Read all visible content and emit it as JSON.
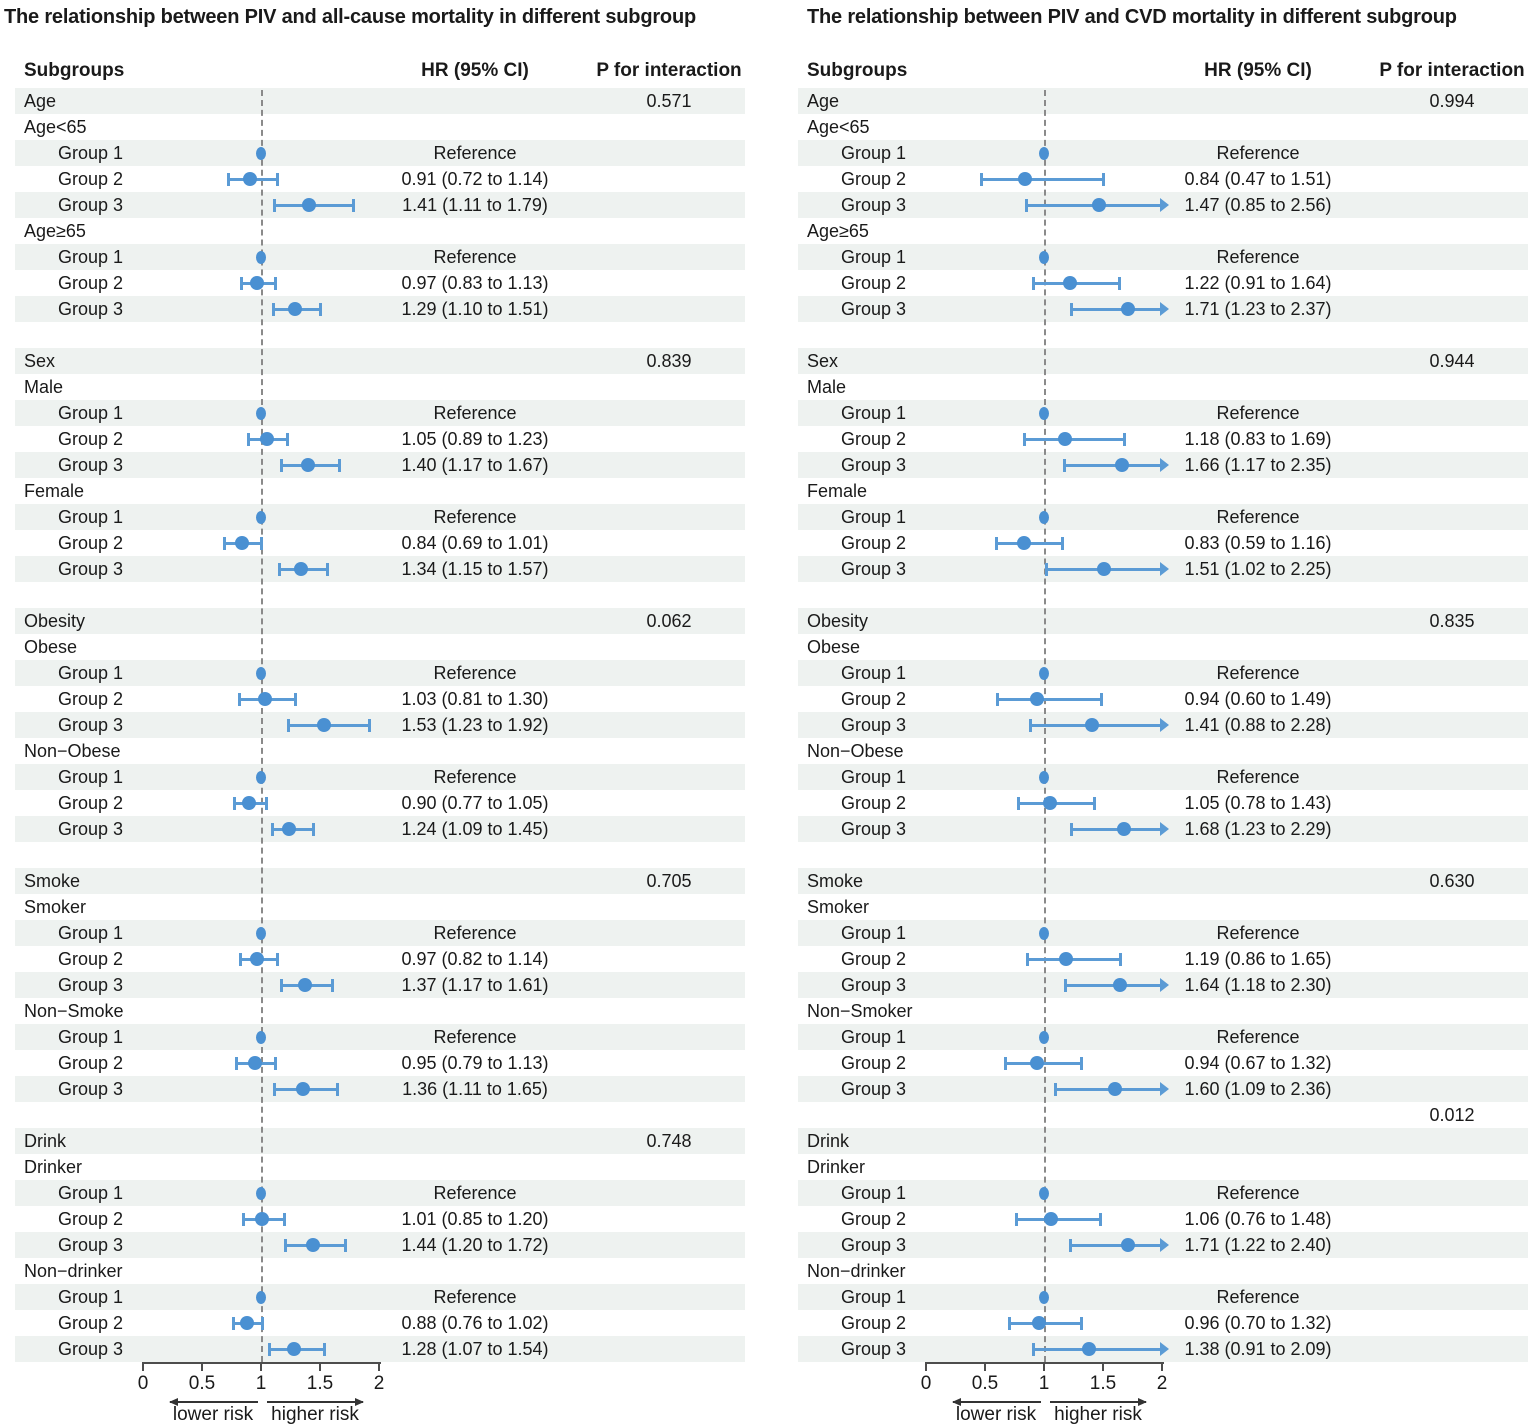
{
  "colors": {
    "marker_blue": "#4a90d2",
    "ci_line_blue": "#5b9bd5",
    "row_stripe": "#eef2f0",
    "reference_line_gray": "#8a8a8a"
  },
  "chart_data": [
    {
      "type": "scatter",
      "subtype": "forest-plot",
      "title": "The relationship between PIV and all-cause mortality in different subgroup",
      "col_headers": {
        "subgroups": "Subgroups",
        "hr_ci": "HR (95% CI)",
        "p_interaction": "P for interaction"
      },
      "axis": {
        "range": [
          0,
          2
        ],
        "tick_labels": [
          "0",
          "0.5",
          "1",
          "1.5",
          "2"
        ],
        "lower_risk_label": "lower risk",
        "higher_risk_label": "higher risk",
        "reference_value": 1
      },
      "rows": [
        {
          "type": "section",
          "label": "Age",
          "p": "0.571"
        },
        {
          "type": "subgroup",
          "label": "Age<65"
        },
        {
          "type": "estimate",
          "label": "Group 1",
          "hr_text": "Reference",
          "hr": 1
        },
        {
          "type": "estimate",
          "label": "Group 2",
          "hr_text": "0.91 (0.72 to 1.14)",
          "hr": 0.91,
          "lo": 0.72,
          "hi": 1.14
        },
        {
          "type": "estimate",
          "label": "Group 3",
          "hr_text": "1.41 (1.11 to 1.79)",
          "hr": 1.41,
          "lo": 1.11,
          "hi": 1.79
        },
        {
          "type": "subgroup",
          "label": "Age≥65"
        },
        {
          "type": "estimate",
          "label": "Group 1",
          "hr_text": "Reference",
          "hr": 1
        },
        {
          "type": "estimate",
          "label": "Group 2",
          "hr_text": "0.97 (0.83 to 1.13)",
          "hr": 0.97,
          "lo": 0.83,
          "hi": 1.13
        },
        {
          "type": "estimate",
          "label": "Group 3",
          "hr_text": "1.29 (1.10 to 1.51)",
          "hr": 1.29,
          "lo": 1.1,
          "hi": 1.51
        },
        {
          "type": "gap"
        },
        {
          "type": "section",
          "label": "Sex",
          "p": "0.839"
        },
        {
          "type": "subgroup",
          "label": "Male"
        },
        {
          "type": "estimate",
          "label": "Group 1",
          "hr_text": "Reference",
          "hr": 1
        },
        {
          "type": "estimate",
          "label": "Group 2",
          "hr_text": "1.05 (0.89 to 1.23)",
          "hr": 1.05,
          "lo": 0.89,
          "hi": 1.23
        },
        {
          "type": "estimate",
          "label": "Group 3",
          "hr_text": "1.40 (1.17 to 1.67)",
          "hr": 1.4,
          "lo": 1.17,
          "hi": 1.67
        },
        {
          "type": "subgroup",
          "label": "Female"
        },
        {
          "type": "estimate",
          "label": "Group 1",
          "hr_text": "Reference",
          "hr": 1
        },
        {
          "type": "estimate",
          "label": "Group 2",
          "hr_text": "0.84 (0.69 to 1.01)",
          "hr": 0.84,
          "lo": 0.69,
          "hi": 1.01
        },
        {
          "type": "estimate",
          "label": "Group 3",
          "hr_text": "1.34 (1.15 to 1.57)",
          "hr": 1.34,
          "lo": 1.15,
          "hi": 1.57
        },
        {
          "type": "gap"
        },
        {
          "type": "section",
          "label": "Obesity",
          "p": "0.062"
        },
        {
          "type": "subgroup",
          "label": "Obese"
        },
        {
          "type": "estimate",
          "label": "Group 1",
          "hr_text": "Reference",
          "hr": 1
        },
        {
          "type": "estimate",
          "label": "Group 2",
          "hr_text": "1.03 (0.81 to 1.30)",
          "hr": 1.03,
          "lo": 0.81,
          "hi": 1.3
        },
        {
          "type": "estimate",
          "label": "Group 3",
          "hr_text": "1.53 (1.23 to 1.92)",
          "hr": 1.53,
          "lo": 1.23,
          "hi": 1.92
        },
        {
          "type": "subgroup",
          "label": "Non−Obese"
        },
        {
          "type": "estimate",
          "label": "Group 1",
          "hr_text": "Reference",
          "hr": 1
        },
        {
          "type": "estimate",
          "label": "Group 2",
          "hr_text": "0.90 (0.77 to 1.05)",
          "hr": 0.9,
          "lo": 0.77,
          "hi": 1.05
        },
        {
          "type": "estimate",
          "label": "Group 3",
          "hr_text": "1.24 (1.09 to 1.45)",
          "hr": 1.24,
          "lo": 1.09,
          "hi": 1.45
        },
        {
          "type": "gap"
        },
        {
          "type": "section",
          "label": "Smoke",
          "p": "0.705"
        },
        {
          "type": "subgroup",
          "label": "Smoker"
        },
        {
          "type": "estimate",
          "label": "Group 1",
          "hr_text": "Reference",
          "hr": 1
        },
        {
          "type": "estimate",
          "label": "Group 2",
          "hr_text": "0.97 (0.82 to 1.14)",
          "hr": 0.97,
          "lo": 0.82,
          "hi": 1.14
        },
        {
          "type": "estimate",
          "label": "Group 3",
          "hr_text": "1.37 (1.17 to 1.61)",
          "hr": 1.37,
          "lo": 1.17,
          "hi": 1.61
        },
        {
          "type": "subgroup",
          "label": "Non−Smoke"
        },
        {
          "type": "estimate",
          "label": "Group 1",
          "hr_text": "Reference",
          "hr": 1
        },
        {
          "type": "estimate",
          "label": "Group 2",
          "hr_text": "0.95 (0.79 to 1.13)",
          "hr": 0.95,
          "lo": 0.79,
          "hi": 1.13
        },
        {
          "type": "estimate",
          "label": "Group 3",
          "hr_text": "1.36 (1.11 to 1.65)",
          "hr": 1.36,
          "lo": 1.11,
          "hi": 1.65
        },
        {
          "type": "gap"
        },
        {
          "type": "section",
          "label": "Drink",
          "p": "0.748"
        },
        {
          "type": "subgroup",
          "label": "Drinker"
        },
        {
          "type": "estimate",
          "label": "Group 1",
          "hr_text": "Reference",
          "hr": 1
        },
        {
          "type": "estimate",
          "label": "Group 2",
          "hr_text": "1.01 (0.85 to 1.20)",
          "hr": 1.01,
          "lo": 0.85,
          "hi": 1.2
        },
        {
          "type": "estimate",
          "label": "Group 3",
          "hr_text": "1.44 (1.20 to 1.72)",
          "hr": 1.44,
          "lo": 1.2,
          "hi": 1.72
        },
        {
          "type": "subgroup",
          "label": "Non−drinker"
        },
        {
          "type": "estimate",
          "label": "Group 1",
          "hr_text": "Reference",
          "hr": 1
        },
        {
          "type": "estimate",
          "label": "Group 2",
          "hr_text": "0.88 (0.76 to 1.02)",
          "hr": 0.88,
          "lo": 0.76,
          "hi": 1.02
        },
        {
          "type": "estimate",
          "label": "Group 3",
          "hr_text": "1.28 (1.07 to 1.54)",
          "hr": 1.28,
          "lo": 1.07,
          "hi": 1.54
        }
      ]
    },
    {
      "type": "scatter",
      "subtype": "forest-plot",
      "title": "The relationship between PIV and CVD mortality in different subgroup",
      "col_headers": {
        "subgroups": "Subgroups",
        "hr_ci": "HR (95% CI)",
        "p_interaction": "P for interaction"
      },
      "axis": {
        "range": [
          0,
          2
        ],
        "tick_labels": [
          "0",
          "0.5",
          "1",
          "1.5",
          "2"
        ],
        "lower_risk_label": "lower risk",
        "higher_risk_label": "higher risk",
        "reference_value": 1
      },
      "rows": [
        {
          "type": "section",
          "label": "Age",
          "p": "0.994"
        },
        {
          "type": "subgroup",
          "label": "Age<65"
        },
        {
          "type": "estimate",
          "label": "Group 1",
          "hr_text": "Reference",
          "hr": 1
        },
        {
          "type": "estimate",
          "label": "Group 2",
          "hr_text": "0.84 (0.47 to 1.51)",
          "hr": 0.84,
          "lo": 0.47,
          "hi": 1.51
        },
        {
          "type": "estimate",
          "label": "Group 3",
          "hr_text": "1.47 (0.85 to 2.56)",
          "hr": 1.47,
          "lo": 0.85,
          "hi": 2.56
        },
        {
          "type": "subgroup",
          "label": "Age≥65"
        },
        {
          "type": "estimate",
          "label": "Group 1",
          "hr_text": "Reference",
          "hr": 1
        },
        {
          "type": "estimate",
          "label": "Group 2",
          "hr_text": "1.22 (0.91 to 1.64)",
          "hr": 1.22,
          "lo": 0.91,
          "hi": 1.64
        },
        {
          "type": "estimate",
          "label": "Group 3",
          "hr_text": "1.71 (1.23 to 2.37)",
          "hr": 1.71,
          "lo": 1.23,
          "hi": 2.37
        },
        {
          "type": "gap"
        },
        {
          "type": "section",
          "label": "Sex",
          "p": "0.944"
        },
        {
          "type": "subgroup",
          "label": "Male"
        },
        {
          "type": "estimate",
          "label": "Group 1",
          "hr_text": "Reference",
          "hr": 1
        },
        {
          "type": "estimate",
          "label": "Group 2",
          "hr_text": "1.18 (0.83 to 1.69)",
          "hr": 1.18,
          "lo": 0.83,
          "hi": 1.69
        },
        {
          "type": "estimate",
          "label": "Group 3",
          "hr_text": "1.66 (1.17 to 2.35)",
          "hr": 1.66,
          "lo": 1.17,
          "hi": 2.35
        },
        {
          "type": "subgroup",
          "label": "Female"
        },
        {
          "type": "estimate",
          "label": "Group 1",
          "hr_text": "Reference",
          "hr": 1
        },
        {
          "type": "estimate",
          "label": "Group 2",
          "hr_text": "0.83 (0.59 to 1.16)",
          "hr": 0.83,
          "lo": 0.59,
          "hi": 1.16
        },
        {
          "type": "estimate",
          "label": "Group 3",
          "hr_text": "1.51 (1.02 to 2.25)",
          "hr": 1.51,
          "lo": 1.02,
          "hi": 2.25
        },
        {
          "type": "gap"
        },
        {
          "type": "section",
          "label": "Obesity",
          "p": "0.835"
        },
        {
          "type": "subgroup",
          "label": "Obese"
        },
        {
          "type": "estimate",
          "label": "Group 1",
          "hr_text": "Reference",
          "hr": 1
        },
        {
          "type": "estimate",
          "label": "Group 2",
          "hr_text": "0.94 (0.60 to 1.49)",
          "hr": 0.94,
          "lo": 0.6,
          "hi": 1.49
        },
        {
          "type": "estimate",
          "label": "Group 3",
          "hr_text": "1.41 (0.88 to 2.28)",
          "hr": 1.41,
          "lo": 0.88,
          "hi": 2.28
        },
        {
          "type": "subgroup",
          "label": "Non−Obese"
        },
        {
          "type": "estimate",
          "label": "Group 1",
          "hr_text": "Reference",
          "hr": 1
        },
        {
          "type": "estimate",
          "label": "Group 2",
          "hr_text": "1.05 (0.78 to 1.43)",
          "hr": 1.05,
          "lo": 0.78,
          "hi": 1.43
        },
        {
          "type": "estimate",
          "label": "Group 3",
          "hr_text": "1.68 (1.23 to 2.29)",
          "hr": 1.68,
          "lo": 1.23,
          "hi": 2.29
        },
        {
          "type": "gap"
        },
        {
          "type": "section",
          "label": "Smoke",
          "p": "0.630"
        },
        {
          "type": "subgroup",
          "label": "Smoker"
        },
        {
          "type": "estimate",
          "label": "Group 1",
          "hr_text": "Reference",
          "hr": 1
        },
        {
          "type": "estimate",
          "label": "Group 2",
          "hr_text": "1.19 (0.86 to 1.65)",
          "hr": 1.19,
          "lo": 0.86,
          "hi": 1.65
        },
        {
          "type": "estimate",
          "label": "Group 3",
          "hr_text": "1.64 (1.18 to 2.30)",
          "hr": 1.64,
          "lo": 1.18,
          "hi": 2.3
        },
        {
          "type": "subgroup",
          "label": "Non−Smoker"
        },
        {
          "type": "estimate",
          "label": "Group 1",
          "hr_text": "Reference",
          "hr": 1
        },
        {
          "type": "estimate",
          "label": "Group 2",
          "hr_text": "0.94 (0.67 to 1.32)",
          "hr": 0.94,
          "lo": 0.67,
          "hi": 1.32
        },
        {
          "type": "estimate",
          "label": "Group 3",
          "hr_text": "1.60 (1.09 to 2.36)",
          "hr": 1.6,
          "lo": 1.09,
          "hi": 2.36
        },
        {
          "type": "gap",
          "p": "0.012"
        },
        {
          "type": "section",
          "label": "Drink"
        },
        {
          "type": "subgroup",
          "label": "Drinker"
        },
        {
          "type": "estimate",
          "label": "Group 1",
          "hr_text": "Reference",
          "hr": 1
        },
        {
          "type": "estimate",
          "label": "Group 2",
          "hr_text": "1.06 (0.76 to 1.48)",
          "hr": 1.06,
          "lo": 0.76,
          "hi": 1.48
        },
        {
          "type": "estimate",
          "label": "Group 3",
          "hr_text": "1.71 (1.22 to 2.40)",
          "hr": 1.71,
          "lo": 1.22,
          "hi": 2.4
        },
        {
          "type": "subgroup",
          "label": "Non−drinker"
        },
        {
          "type": "estimate",
          "label": "Group 1",
          "hr_text": "Reference",
          "hr": 1
        },
        {
          "type": "estimate",
          "label": "Group 2",
          "hr_text": "0.96 (0.70 to 1.32)",
          "hr": 0.96,
          "lo": 0.7,
          "hi": 1.32
        },
        {
          "type": "estimate",
          "label": "Group 3",
          "hr_text": "1.38 (0.91 to 2.09)",
          "hr": 1.38,
          "lo": 0.91,
          "hi": 2.09
        }
      ]
    }
  ]
}
